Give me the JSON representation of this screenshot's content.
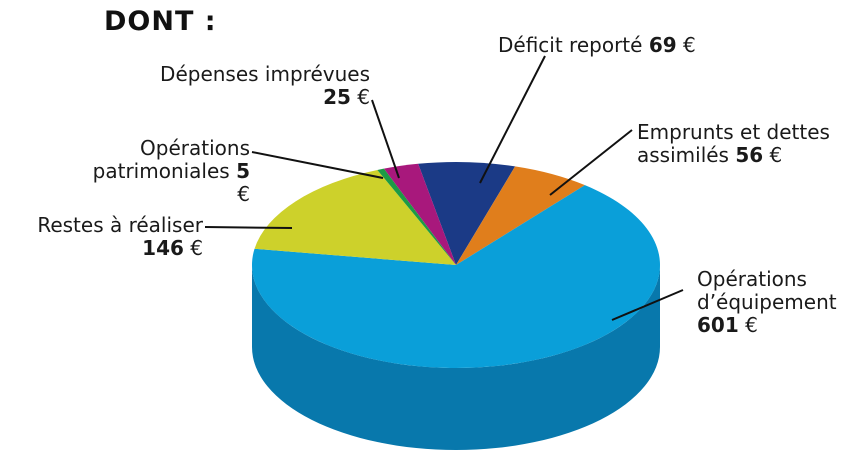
{
  "chart_data": {
    "type": "pie3d",
    "title": "DONT :",
    "unit": "€",
    "categories": [
      "Déficit reporté",
      "Emprunts et dettes assimilés",
      "Opérations d’équipement",
      "Restes à réaliser",
      "Opérations patrimoniales",
      "Dépenses imprévues"
    ],
    "values": [
      69,
      56,
      601,
      146,
      5,
      25
    ],
    "colors": [
      "#1b3a86",
      "#e07e1c",
      "#0a9fd9",
      "#cdd12b",
      "#1d9b45",
      "#a8187c"
    ],
    "side_colors": [
      "#122a63",
      "#a85c12",
      "#0878ac",
      "#9a9d1e",
      "#127032",
      "#7a1059"
    ]
  }
}
